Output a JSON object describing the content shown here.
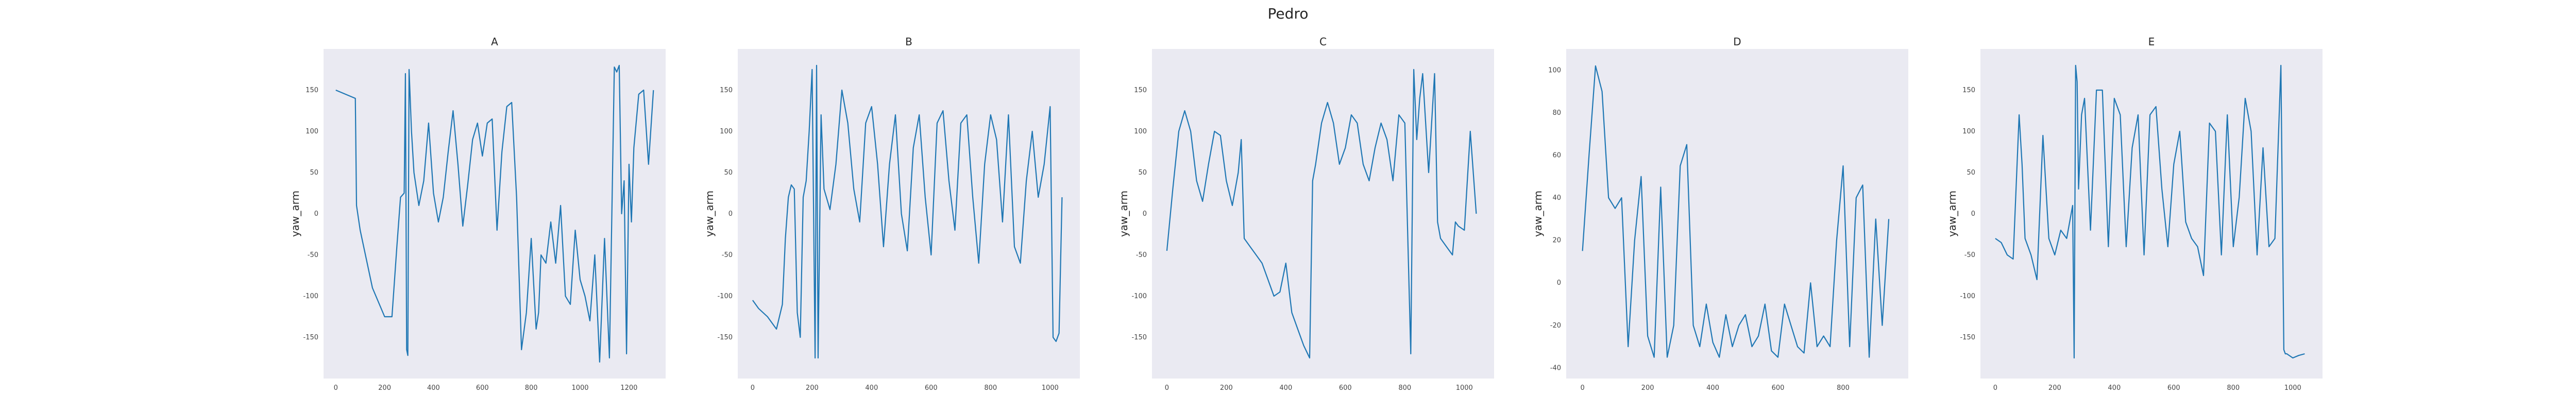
{
  "figure": {
    "title": "Pedro"
  },
  "colors": {
    "line": "#1f77b4",
    "axes_bg": "#eaeaf2"
  },
  "chart_data": [
    {
      "type": "line",
      "title": "A",
      "ylabel": "yaw_arm",
      "xlim": [
        -50,
        1350
      ],
      "ylim": [
        -200,
        200
      ],
      "xticks": [
        0,
        200,
        400,
        600,
        800,
        1000,
        1200
      ],
      "yticks": [
        -150,
        -100,
        -50,
        0,
        50,
        100,
        150
      ],
      "series": [
        {
          "x": [
            0,
            40,
            80,
            85,
            100,
            150,
            200,
            230,
            250,
            265,
            280,
            285,
            290,
            295,
            300,
            310,
            320,
            340,
            360,
            380,
            400,
            420,
            440,
            460,
            480,
            500,
            520,
            540,
            560,
            580,
            600,
            620,
            640,
            660,
            680,
            700,
            720,
            740,
            760,
            780,
            800,
            820,
            830,
            840,
            860,
            880,
            900,
            920,
            940,
            960,
            980,
            1000,
            1020,
            1040,
            1060,
            1080,
            1100,
            1120,
            1140,
            1150,
            1160,
            1170,
            1180,
            1190,
            1200,
            1210,
            1220,
            1240,
            1260,
            1280,
            1300
          ],
          "y": [
            150,
            145,
            140,
            10,
            -20,
            -90,
            -125,
            -125,
            -40,
            20,
            25,
            170,
            -165,
            -172,
            175,
            100,
            50,
            10,
            40,
            110,
            25,
            -10,
            20,
            75,
            125,
            60,
            -15,
            35,
            90,
            110,
            70,
            110,
            115,
            -20,
            75,
            130,
            135,
            20,
            -165,
            -120,
            -30,
            -140,
            -120,
            -50,
            -60,
            -10,
            -60,
            10,
            -100,
            -110,
            -20,
            -80,
            -100,
            -130,
            -50,
            -180,
            -30,
            -175,
            178,
            172,
            180,
            0,
            40,
            -170,
            60,
            -10,
            80,
            145,
            150,
            60,
            150
          ]
        }
      ]
    },
    {
      "type": "line",
      "title": "B",
      "ylabel": "yaw_arm",
      "xlim": [
        -50,
        1100
      ],
      "ylim": [
        -200,
        200
      ],
      "xticks": [
        0,
        200,
        400,
        600,
        800,
        1000
      ],
      "yticks": [
        -150,
        -100,
        -50,
        0,
        50,
        100,
        150
      ],
      "series": [
        {
          "x": [
            0,
            20,
            50,
            80,
            100,
            110,
            120,
            130,
            140,
            150,
            160,
            170,
            180,
            190,
            200,
            210,
            215,
            220,
            230,
            240,
            260,
            280,
            300,
            320,
            340,
            360,
            380,
            400,
            420,
            440,
            460,
            480,
            500,
            520,
            540,
            560,
            580,
            600,
            620,
            640,
            660,
            680,
            700,
            720,
            740,
            760,
            780,
            800,
            820,
            840,
            860,
            880,
            900,
            920,
            940,
            960,
            980,
            1000,
            1010,
            1020,
            1030,
            1040
          ],
          "y": [
            -105,
            -115,
            -125,
            -140,
            -110,
            -30,
            20,
            35,
            30,
            -120,
            -150,
            20,
            40,
            100,
            175,
            -175,
            180,
            -175,
            120,
            30,
            5,
            60,
            150,
            110,
            30,
            -10,
            110,
            130,
            60,
            -40,
            60,
            120,
            0,
            -45,
            80,
            120,
            20,
            -50,
            110,
            125,
            40,
            -20,
            110,
            120,
            20,
            -60,
            60,
            120,
            90,
            -10,
            120,
            -40,
            -60,
            40,
            100,
            20,
            60,
            130,
            -150,
            -155,
            -145,
            20
          ]
        }
      ]
    },
    {
      "type": "line",
      "title": "C",
      "ylabel": "yaw_arm",
      "xlim": [
        -50,
        1100
      ],
      "ylim": [
        -200,
        200
      ],
      "xticks": [
        0,
        200,
        400,
        600,
        800,
        1000
      ],
      "yticks": [
        -150,
        -100,
        -50,
        0,
        50,
        100,
        150
      ],
      "series": [
        {
          "x": [
            0,
            20,
            40,
            60,
            80,
            100,
            120,
            140,
            160,
            180,
            200,
            220,
            240,
            250,
            260,
            280,
            300,
            320,
            340,
            360,
            380,
            400,
            420,
            440,
            460,
            480,
            490,
            500,
            520,
            540,
            560,
            580,
            600,
            620,
            640,
            660,
            680,
            700,
            720,
            740,
            760,
            780,
            800,
            820,
            830,
            840,
            850,
            860,
            880,
            900,
            910,
            920,
            940,
            960,
            970,
            980,
            1000,
            1020,
            1040
          ],
          "y": [
            -45,
            30,
            100,
            125,
            100,
            40,
            15,
            60,
            100,
            95,
            40,
            10,
            50,
            90,
            -30,
            -40,
            -50,
            -60,
            -80,
            -100,
            -95,
            -60,
            -120,
            -140,
            -160,
            -175,
            40,
            60,
            110,
            135,
            110,
            60,
            80,
            120,
            110,
            60,
            40,
            80,
            110,
            90,
            40,
            120,
            110,
            -170,
            175,
            90,
            140,
            170,
            50,
            170,
            -10,
            -30,
            -40,
            -50,
            -10,
            -15,
            -20,
            100,
            0
          ]
        }
      ]
    },
    {
      "type": "line",
      "title": "D",
      "ylabel": "yaw_arm",
      "xlim": [
        -50,
        1000
      ],
      "ylim": [
        -45,
        110
      ],
      "xticks": [
        0,
        200,
        400,
        600,
        800
      ],
      "yticks": [
        -40,
        -20,
        0,
        20,
        40,
        60,
        80,
        100
      ],
      "series": [
        {
          "x": [
            0,
            20,
            40,
            60,
            80,
            100,
            120,
            140,
            160,
            180,
            200,
            220,
            240,
            260,
            280,
            300,
            320,
            340,
            360,
            380,
            400,
            420,
            440,
            460,
            480,
            500,
            520,
            540,
            560,
            580,
            600,
            620,
            640,
            660,
            680,
            700,
            720,
            740,
            760,
            780,
            800,
            820,
            840,
            860,
            880,
            900,
            920,
            940
          ],
          "y": [
            15,
            60,
            102,
            90,
            40,
            35,
            40,
            -30,
            20,
            50,
            -25,
            -35,
            45,
            -35,
            -20,
            55,
            65,
            -20,
            -30,
            -10,
            -28,
            -35,
            -15,
            -30,
            -20,
            -15,
            -30,
            -25,
            -10,
            -32,
            -35,
            -10,
            -20,
            -30,
            -33,
            0,
            -30,
            -25,
            -30,
            20,
            55,
            -30,
            40,
            46,
            -35,
            30,
            -20,
            30
          ]
        }
      ]
    },
    {
      "type": "line",
      "title": "E",
      "ylabel": "yaw_arm",
      "xlim": [
        -50,
        1100
      ],
      "ylim": [
        -200,
        200
      ],
      "xticks": [
        0,
        200,
        400,
        600,
        800,
        1000
      ],
      "yticks": [
        -150,
        -100,
        -50,
        0,
        50,
        100,
        150
      ],
      "series": [
        {
          "x": [
            0,
            20,
            40,
            60,
            80,
            90,
            100,
            120,
            140,
            160,
            180,
            200,
            220,
            240,
            260,
            265,
            270,
            275,
            280,
            290,
            300,
            320,
            340,
            360,
            380,
            400,
            420,
            440,
            460,
            480,
            500,
            520,
            540,
            560,
            580,
            600,
            620,
            640,
            660,
            680,
            700,
            720,
            740,
            760,
            780,
            800,
            820,
            840,
            860,
            880,
            900,
            920,
            940,
            960,
            970,
            975,
            980,
            1000,
            1020,
            1040
          ],
          "y": [
            -30,
            -35,
            -50,
            -55,
            120,
            60,
            -30,
            -50,
            -80,
            95,
            -30,
            -50,
            -20,
            -30,
            10,
            -175,
            180,
            160,
            30,
            120,
            140,
            -20,
            150,
            150,
            -40,
            140,
            120,
            -40,
            80,
            120,
            -50,
            120,
            130,
            30,
            -40,
            60,
            100,
            -10,
            -30,
            -40,
            -75,
            110,
            100,
            -50,
            120,
            -40,
            20,
            140,
            100,
            -50,
            80,
            -40,
            -30,
            180,
            -165,
            -170,
            -170,
            -175,
            -172,
            -170
          ]
        }
      ]
    }
  ]
}
